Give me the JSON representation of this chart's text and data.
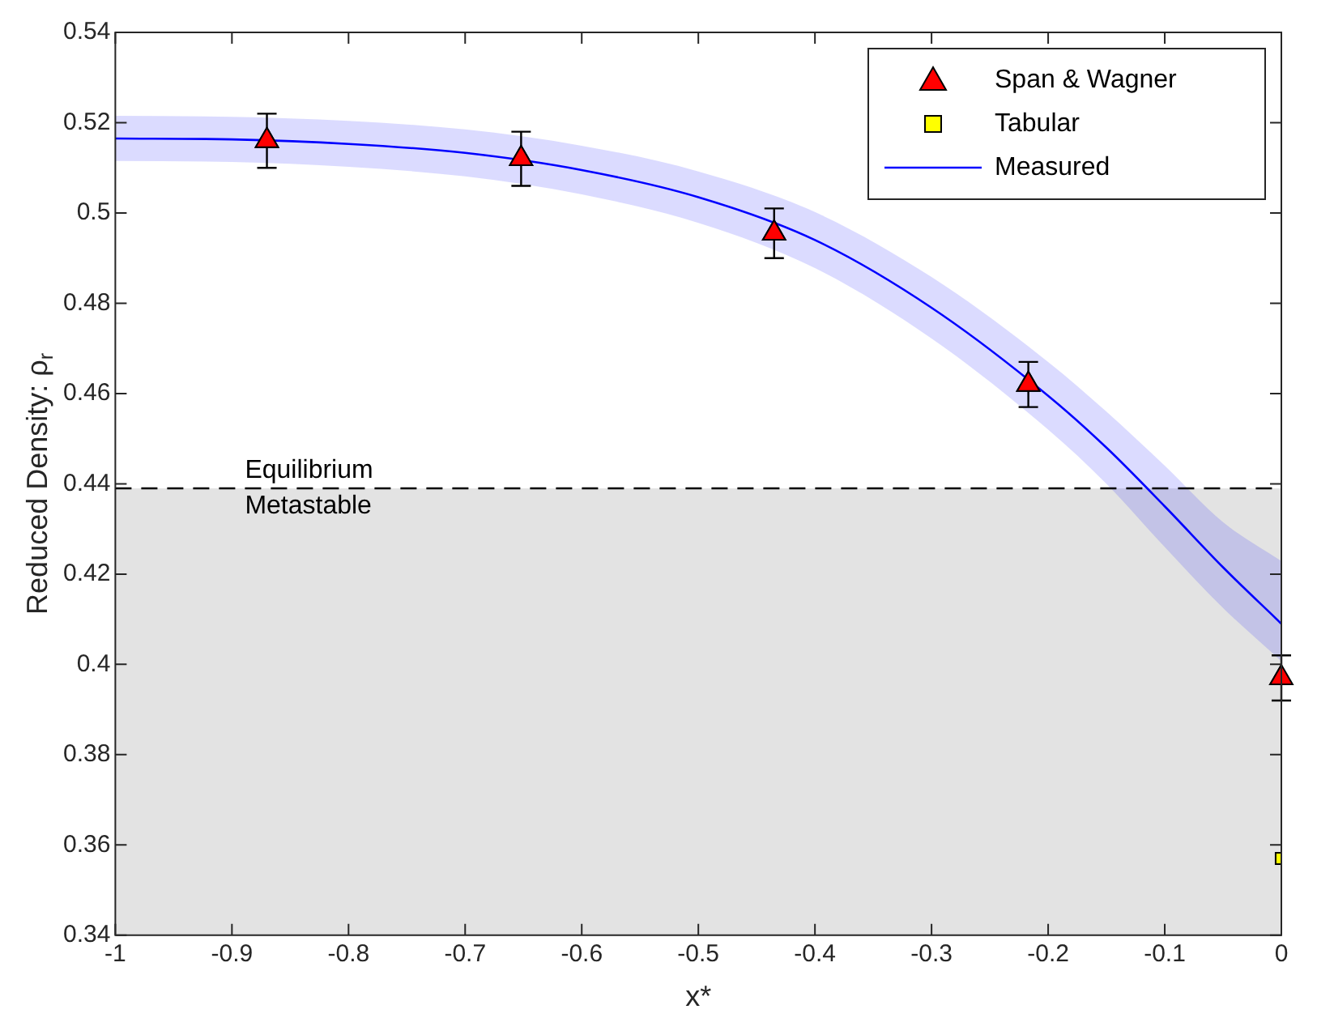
{
  "chart_data": {
    "type": "scatter",
    "xlabel": "x*",
    "ylabel": "Reduced Density: ρ$_{r}$",
    "xlim": [
      -1,
      0
    ],
    "xticks": [
      -1,
      -0.9,
      -0.8,
      -0.7,
      -0.6,
      -0.5,
      -0.4,
      -0.3,
      -0.2,
      -0.1,
      0
    ],
    "ylim": [
      0.34,
      0.54
    ],
    "yticks": [
      0.34,
      0.36,
      0.38,
      0.4,
      0.42,
      0.44,
      0.46,
      0.48,
      0.5,
      0.52,
      0.54
    ],
    "grid": false,
    "legend": "top right",
    "ref_lines": [
      {
        "axis": "y",
        "value": 0.439,
        "label": "Equilibrium",
        "color": "#000000",
        "line_style": "dashed"
      }
    ],
    "bands": [
      {
        "axis": "y",
        "from": 0.34,
        "to": 0.439,
        "label": "Metastable",
        "color": "#e3e3e3"
      }
    ],
    "series": [
      {
        "name": "Span & Wagner",
        "type": "scatter",
        "color": "#ff0000",
        "marker": "triangle",
        "x": [
          -0.87,
          -0.652,
          -0.435,
          -0.217,
          0
        ],
        "values": [
          0.516,
          0.512,
          0.4955,
          0.462,
          0.397
        ],
        "errors": [
          0.006,
          0.006,
          0.0055,
          0.005,
          0.005
        ]
      },
      {
        "name": "Tabular",
        "type": "scatter",
        "color": "#ffff00",
        "marker": "square",
        "x": [
          0
        ],
        "values": [
          0.357
        ]
      },
      {
        "name": "Measured",
        "type": "line",
        "color": "#0000ff",
        "marker": "none",
        "x": [
          -1,
          -0.9,
          -0.8,
          -0.7,
          -0.6,
          -0.5,
          -0.4,
          -0.3,
          -0.2,
          -0.15,
          -0.1,
          -0.05,
          0
        ],
        "values": [
          0.5165,
          0.5163,
          0.5153,
          0.5133,
          0.5095,
          0.5035,
          0.494,
          0.479,
          0.4595,
          0.448,
          0.435,
          0.4215,
          0.409
        ],
        "lower": [
          0.5115,
          0.5113,
          0.5102,
          0.5081,
          0.5041,
          0.4978,
          0.4878,
          0.4722,
          0.452,
          0.44,
          0.426,
          0.4125,
          0.4007
        ],
        "upper": [
          0.5215,
          0.5213,
          0.5204,
          0.5185,
          0.5149,
          0.5092,
          0.5002,
          0.4858,
          0.467,
          0.456,
          0.444,
          0.4315,
          0.4229
        ]
      }
    ]
  }
}
